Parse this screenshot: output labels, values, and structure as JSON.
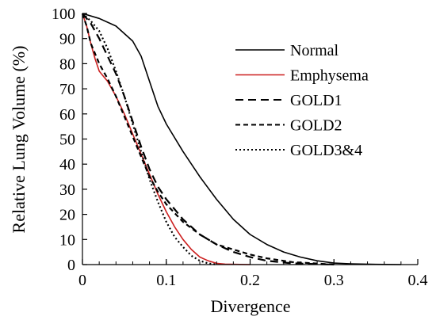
{
  "chart_data": {
    "type": "line",
    "title": "",
    "xlabel": "Divergence",
    "ylabel": "Relative Lung Volume (%)",
    "xlim": [
      0,
      0.4
    ],
    "ylim": [
      0,
      100
    ],
    "x_ticks": [
      "0",
      "0.1",
      "0.2",
      "0.3",
      "0.4"
    ],
    "y_ticks": [
      "0",
      "10",
      "20",
      "30",
      "40",
      "50",
      "60",
      "70",
      "80",
      "90",
      "100"
    ],
    "grid": false,
    "legend_position": "top-right",
    "series": [
      {
        "name": "Normal",
        "color": "#000000",
        "dash": "solid",
        "points": [
          [
            0,
            100
          ],
          [
            0.02,
            98
          ],
          [
            0.04,
            95
          ],
          [
            0.06,
            89
          ],
          [
            0.07,
            83
          ],
          [
            0.08,
            73
          ],
          [
            0.09,
            63
          ],
          [
            0.1,
            56
          ],
          [
            0.12,
            45
          ],
          [
            0.14,
            35
          ],
          [
            0.16,
            26
          ],
          [
            0.18,
            18
          ],
          [
            0.2,
            12
          ],
          [
            0.22,
            8
          ],
          [
            0.24,
            5
          ],
          [
            0.26,
            3
          ],
          [
            0.28,
            1.5
          ],
          [
            0.3,
            0.6
          ],
          [
            0.32,
            0.3
          ],
          [
            0.35,
            0.1
          ],
          [
            0.38,
            0
          ]
        ]
      },
      {
        "name": "Emphysema",
        "color": "#cc1f1f",
        "dash": "solid",
        "points": [
          [
            0,
            100
          ],
          [
            0.005,
            95
          ],
          [
            0.01,
            88
          ],
          [
            0.015,
            82
          ],
          [
            0.02,
            77
          ],
          [
            0.03,
            73
          ],
          [
            0.04,
            67
          ],
          [
            0.05,
            60
          ],
          [
            0.06,
            52
          ],
          [
            0.07,
            44
          ],
          [
            0.08,
            36
          ],
          [
            0.09,
            28
          ],
          [
            0.1,
            21
          ],
          [
            0.11,
            15
          ],
          [
            0.12,
            10
          ],
          [
            0.13,
            6
          ],
          [
            0.14,
            3
          ],
          [
            0.15,
            1.5
          ],
          [
            0.16,
            0.5
          ],
          [
            0.17,
            0.2
          ],
          [
            0.2,
            0
          ]
        ]
      },
      {
        "name": "GOLD1",
        "color": "#000000",
        "dash": "long-dash",
        "points": [
          [
            0,
            100
          ],
          [
            0.01,
            96
          ],
          [
            0.02,
            90
          ],
          [
            0.03,
            83
          ],
          [
            0.04,
            76
          ],
          [
            0.05,
            67
          ],
          [
            0.06,
            57
          ],
          [
            0.07,
            47
          ],
          [
            0.08,
            38
          ],
          [
            0.09,
            31
          ],
          [
            0.1,
            26
          ],
          [
            0.12,
            18
          ],
          [
            0.14,
            12
          ],
          [
            0.16,
            8
          ],
          [
            0.18,
            5
          ],
          [
            0.2,
            3
          ],
          [
            0.22,
            1.5
          ],
          [
            0.25,
            0.5
          ],
          [
            0.3,
            0
          ]
        ]
      },
      {
        "name": "GOLD2",
        "color": "#000000",
        "dash": "short-dash",
        "points": [
          [
            0,
            100
          ],
          [
            0.005,
            95
          ],
          [
            0.01,
            88
          ],
          [
            0.02,
            80
          ],
          [
            0.03,
            74
          ],
          [
            0.04,
            67
          ],
          [
            0.05,
            59
          ],
          [
            0.06,
            51
          ],
          [
            0.07,
            43
          ],
          [
            0.08,
            35
          ],
          [
            0.09,
            29
          ],
          [
            0.1,
            24
          ],
          [
            0.12,
            17
          ],
          [
            0.14,
            12
          ],
          [
            0.16,
            8
          ],
          [
            0.18,
            6
          ],
          [
            0.2,
            4
          ],
          [
            0.22,
            2.5
          ],
          [
            0.25,
            1
          ],
          [
            0.3,
            0
          ]
        ]
      },
      {
        "name": "GOLD3&4",
        "color": "#000000",
        "dash": "dotted",
        "points": [
          [
            0,
            100
          ],
          [
            0.01,
            97
          ],
          [
            0.02,
            93
          ],
          [
            0.03,
            86
          ],
          [
            0.04,
            77
          ],
          [
            0.05,
            67
          ],
          [
            0.06,
            56
          ],
          [
            0.07,
            45
          ],
          [
            0.08,
            34
          ],
          [
            0.09,
            25
          ],
          [
            0.1,
            17
          ],
          [
            0.11,
            11
          ],
          [
            0.12,
            7
          ],
          [
            0.13,
            3.5
          ],
          [
            0.14,
            1.5
          ],
          [
            0.15,
            0.5
          ],
          [
            0.16,
            0
          ]
        ]
      }
    ]
  }
}
